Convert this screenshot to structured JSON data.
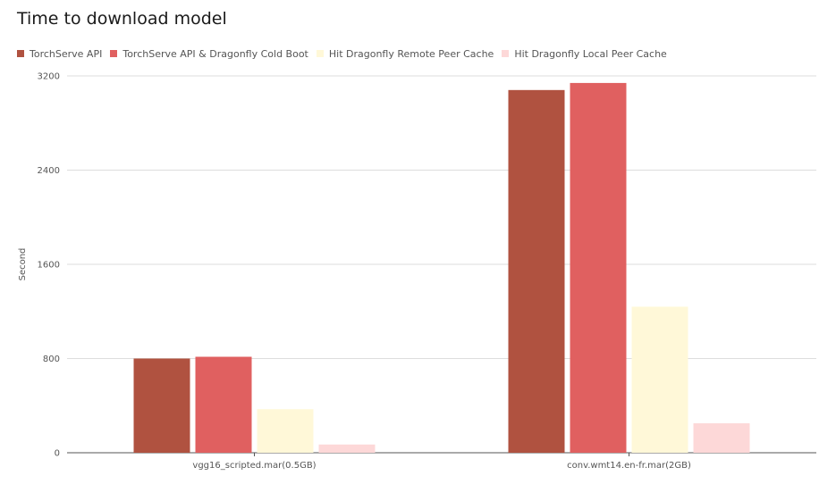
{
  "chart_data": {
    "type": "bar",
    "title": "Time to download model",
    "xlabel": "",
    "ylabel": "Second",
    "ylim": [
      0,
      3200
    ],
    "yticks": [
      0,
      800,
      1600,
      2400,
      3200
    ],
    "grid": true,
    "legend_position": "top-left",
    "categories": [
      "vgg16_scripted.mar(0.5GB)",
      "conv.wmt14.en-fr.mar(2GB)"
    ],
    "series": [
      {
        "name": "TorchServe API",
        "color": "#b05240",
        "values": [
          800,
          3080
        ]
      },
      {
        "name": "TorchServe API & Dragonfly Cold Boot",
        "color": "#e06060",
        "values": [
          815,
          3140
        ]
      },
      {
        "name": "Hit Dragonfly Remote Peer Cache",
        "color": "#fff8d8",
        "values": [
          370,
          1240
        ]
      },
      {
        "name": "Hit Dragonfly Local Peer Cache",
        "color": "#fdd8d8",
        "values": [
          70,
          250
        ]
      }
    ]
  }
}
